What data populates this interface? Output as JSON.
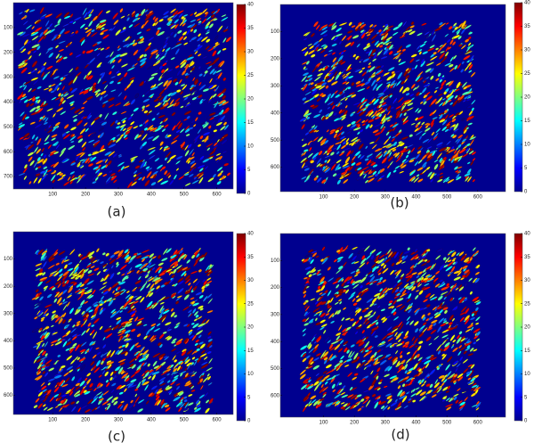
{
  "chart_data": [
    {
      "type": "image",
      "caption": "(a)",
      "xlim": [
        -20,
        650
      ],
      "ylim": [
        750,
        0
      ],
      "xticks": [
        100,
        200,
        300,
        400,
        500,
        600
      ],
      "yticks": [
        100,
        200,
        300,
        400,
        500,
        600,
        700
      ],
      "clim": [
        0,
        40
      ],
      "cticks": [
        0,
        5,
        10,
        15,
        20,
        25,
        30,
        35,
        40
      ]
    },
    {
      "type": "image",
      "caption": "(b)",
      "xlim": [
        -40,
        690
      ],
      "ylim": [
        690,
        0
      ],
      "xticks": [
        100,
        200,
        300,
        400,
        500,
        600
      ],
      "yticks": [
        100,
        200,
        300,
        400,
        500,
        600
      ],
      "clim": [
        0,
        40
      ],
      "cticks": [
        0,
        5,
        10,
        15,
        20,
        25,
        30,
        35,
        40
      ]
    },
    {
      "type": "image",
      "caption": "(c)",
      "xlim": [
        -20,
        650
      ],
      "ylim": [
        670,
        0
      ],
      "xticks": [
        100,
        200,
        300,
        400,
        500,
        600
      ],
      "yticks": [
        100,
        200,
        300,
        400,
        500,
        600
      ],
      "clim": [
        0,
        40
      ],
      "cticks": [
        0,
        5,
        10,
        15,
        20,
        25,
        30,
        35,
        40
      ]
    },
    {
      "type": "image",
      "caption": "(d)",
      "xlim": [
        -40,
        690
      ],
      "ylim": [
        680,
        0
      ],
      "xticks": [
        100,
        200,
        300,
        400,
        500,
        600
      ],
      "yticks": [
        100,
        200,
        300,
        400,
        500,
        600
      ],
      "clim": [
        0,
        40
      ],
      "cticks": [
        0,
        5,
        10,
        15,
        20,
        25,
        30,
        35,
        40
      ]
    }
  ]
}
